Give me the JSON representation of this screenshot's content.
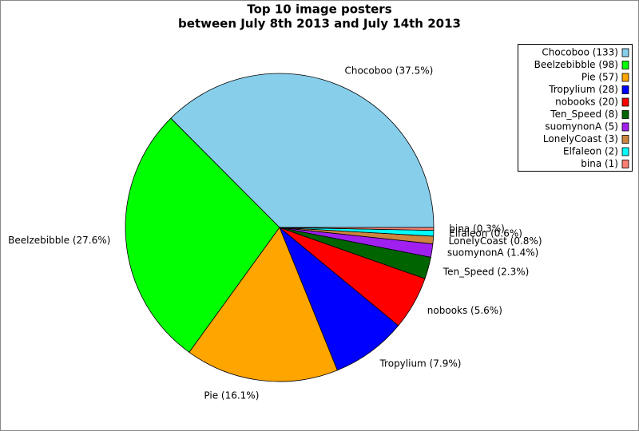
{
  "chart_data": {
    "type": "pie",
    "title": "Top 10 image posters",
    "subtitle": "between July 8th 2013 and July 14th 2013",
    "categories": [
      "Chocoboo",
      "Beelzebibble",
      "Pie",
      "Tropylium",
      "nobooks",
      "Ten_Speed",
      "suomynonA",
      "LonelyCoast",
      "Elfaleon",
      "bina"
    ],
    "values": [
      37.5,
      27.6,
      16.1,
      7.9,
      5.6,
      2.3,
      1.4,
      0.8,
      0.6,
      0.3
    ],
    "value_labels": [
      "Chocoboo (37.5%)",
      "Beelzebibble (27.6%)",
      "Pie (16.1%)",
      "Tropylium (7.9%)",
      "nobooks (5.6%)",
      "Ten_Speed (2.3%)",
      "suomynonA (1.4%)",
      "LonelyCoast (0.8%)",
      "Elfaleon (0.6%)",
      "bina (0.3%)"
    ],
    "legend_labels": [
      "Chocoboo (133)",
      "Beelzebibble (98)",
      "Pie (57)",
      "Tropylium (28)",
      "nobooks (20)",
      "Ten_Speed (8)",
      "suomynonA (5)",
      "LonelyCoast (3)",
      "Elfaleon (2)",
      "bina (1)"
    ],
    "colors": [
      "#87ceeb",
      "#00ff00",
      "#ffa500",
      "#0000ff",
      "#ff0000",
      "#006400",
      "#a020f0",
      "#cd853f",
      "#00ffff",
      "#fa8072"
    ],
    "legend_position": "upper right"
  }
}
